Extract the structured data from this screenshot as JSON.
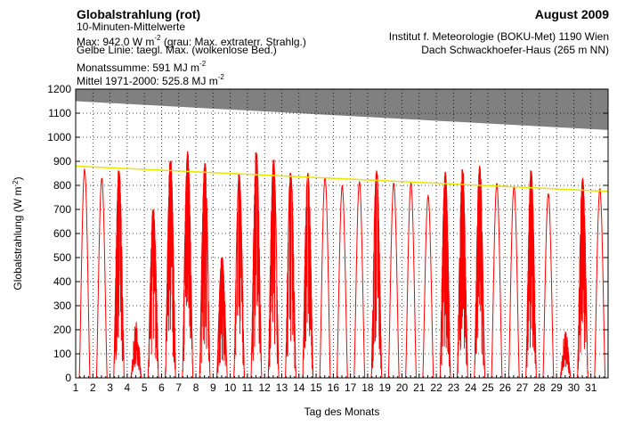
{
  "header": {
    "title": "Globalstrahlung (rot)",
    "subtitle": "10-Minuten-Mittelwerte",
    "max_prefix": "Max:  942.0 W m",
    "max_exp": "-2",
    "max_suffix": "  (grau: Max. extraterr. Strahlg.)",
    "yellow_line_note": "Gelbe Linie: taegl. Max. (wolkenlose Bed.)",
    "monthly_sum_prefix": "Monatssumme:  591 MJ m",
    "monthly_sum_exp": "-2",
    "mean_prefix": "Mittel 1971-2000:  525.8 MJ m",
    "mean_exp": "-2",
    "month": "August 2009",
    "institute": "Institut f. Meteorologie (BOKU-Met) 1190 Wien",
    "location": "Dach Schwackhoefer-Haus (265 m NN)"
  },
  "chart_data": {
    "type": "line",
    "xlabel": "Tag des Monats",
    "ylabel": "Globalstrahlung (W m",
    "ylabel_exp": "-2",
    "ylabel_close": ")",
    "xlim": [
      1,
      32
    ],
    "ylim": [
      0,
      1200
    ],
    "x_ticks": [
      "1",
      "2",
      "3",
      "4",
      "5",
      "6",
      "7",
      "8",
      "9",
      "10",
      "11",
      "12",
      "13",
      "14",
      "15",
      "16",
      "17",
      "18",
      "19",
      "20",
      "21",
      "22",
      "23",
      "24",
      "25",
      "26",
      "27",
      "28",
      "29",
      "30",
      "31"
    ],
    "y_ticks": [
      "0",
      "100",
      "200",
      "300",
      "400",
      "500",
      "600",
      "700",
      "800",
      "900",
      "1000",
      "1100",
      "1200"
    ],
    "grid": true,
    "colors": {
      "measured": "#ff0000",
      "clear_sky": "#e6e600",
      "extraterrestrial": "#808080"
    },
    "extraterrestrial_max": {
      "x": [
        1,
        32
      ],
      "y": [
        1150,
        1030
      ]
    },
    "clear_sky_max": {
      "x": [
        1,
        32
      ],
      "y": [
        880,
        775
      ]
    },
    "daily_max": [
      870,
      835,
      860,
      240,
      700,
      900,
      940,
      890,
      500,
      845,
      935,
      905,
      850,
      850,
      840,
      800,
      820,
      860,
      815,
      815,
      760,
      855,
      865,
      880,
      810,
      800,
      860,
      770,
      200,
      830,
      790
    ],
    "daily_profile": [
      "clear",
      "clear",
      "broken",
      "overcast",
      "broken",
      "broken",
      "broken",
      "broken",
      "broken",
      "broken",
      "broken",
      "broken",
      "broken",
      "broken",
      "clear",
      "clear",
      "clear",
      "broken",
      "clear",
      "clear",
      "clear",
      "broken",
      "broken",
      "broken",
      "clear",
      "clear",
      "broken",
      "clear",
      "overcast",
      "broken",
      "clear"
    ]
  }
}
